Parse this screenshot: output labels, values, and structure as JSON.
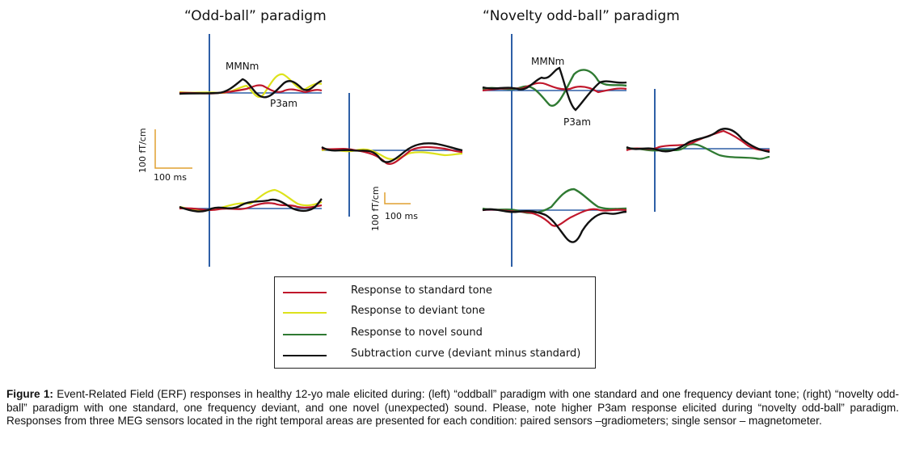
{
  "panels": {
    "left": {
      "title": "“Odd-ball” paradigm",
      "mmn_label": "MMNm",
      "p3_label": "P3am"
    },
    "right": {
      "title": "“Novelty odd-ball” paradigm",
      "mmn_label": "MMNm",
      "p3_label": "P3am"
    }
  },
  "scale_bars": {
    "left": {
      "vertical": "100 fT/cm",
      "horizontal": "100 ms"
    },
    "middle": {
      "vertical": "100 fT/cm",
      "horizontal": "100 ms"
    }
  },
  "legend": {
    "items": [
      {
        "label": "Response to standard tone",
        "color": "#c0172b"
      },
      {
        "label": "Response to deviant tone",
        "color": "#dde21c"
      },
      {
        "label": "Response to novel sound",
        "color": "#2f7a32"
      },
      {
        "label": "Subtraction curve (deviant minus standard)",
        "color": "#111111"
      }
    ]
  },
  "colors": {
    "baseline": "#2e5fa6",
    "standard": "#c0172b",
    "deviant": "#dde21c",
    "novel": "#2f7a32",
    "subtraction": "#111111",
    "scale_bar": "#e0a030"
  },
  "caption": {
    "label": "Figure 1:",
    "text": " Event-Related Field (ERF) responses in healthy 12-yo male elicited during: (left) “oddball” paradigm with one standard and one frequency deviant tone; (right) “novelty odd-ball” paradigm with one standard, one frequency deviant, and one novel (unexpected) sound. Please, note higher P3am response elicited during “novelty odd-ball” paradigm. Responses from three MEG sensors located in the right temporal areas are presented for each condition: paired sensors –gradiometers; single sensor – magnetometer."
  }
}
